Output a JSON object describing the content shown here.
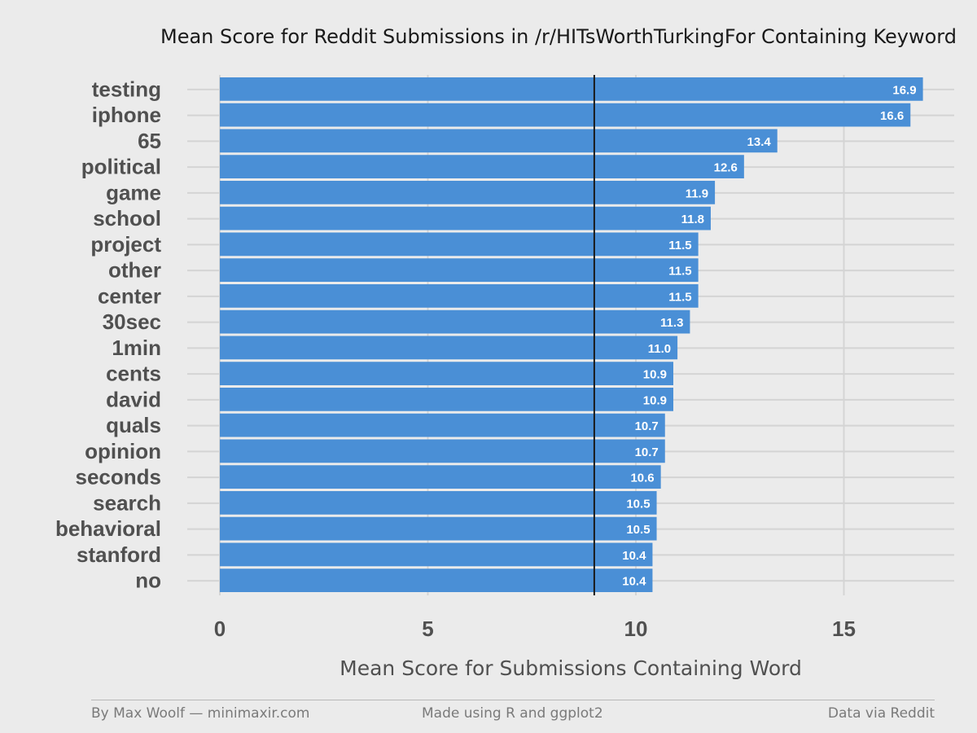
{
  "chart_data": {
    "type": "bar",
    "orientation": "horizontal",
    "title": "Mean Score for Reddit Submissions in /r/HITsWorthTurkingFor Containing Keyword",
    "xlabel": "Mean Score for Submissions Containing Word",
    "ylabel": "",
    "categories": [
      "testing",
      "iphone",
      "65",
      "political",
      "game",
      "school",
      "project",
      "other",
      "center",
      "30sec",
      "1min",
      "cents",
      "david",
      "quals",
      "opinion",
      "seconds",
      "search",
      "behavioral",
      "stanford",
      "no"
    ],
    "values": [
      16.9,
      16.6,
      13.4,
      12.6,
      11.9,
      11.8,
      11.5,
      11.5,
      11.5,
      11.3,
      11.0,
      10.9,
      10.9,
      10.7,
      10.7,
      10.6,
      10.5,
      10.5,
      10.4,
      10.4
    ],
    "value_labels": [
      "16.9",
      "16.6",
      "13.4",
      "12.6",
      "11.9",
      "11.8",
      "11.5",
      "11.5",
      "11.5",
      "11.3",
      "11.0",
      "10.9",
      "10.9",
      "10.7",
      "10.7",
      "10.6",
      "10.5",
      "10.5",
      "10.4",
      "10.4"
    ],
    "xticks": [
      "0",
      "5",
      "10",
      "15"
    ],
    "xtick_values": [
      0,
      5,
      10,
      15
    ],
    "xlim": [
      0,
      17.6
    ],
    "reference_line": 9.0,
    "grid": true,
    "bar_color": "#4a8fd6",
    "reference_line_color": "#1a1a1a",
    "background_color": "#ebebeb"
  },
  "footer": {
    "left": "By Max Woolf — minimaxir.com",
    "center": "Made using R and ggplot2",
    "right": "Data via Reddit"
  }
}
